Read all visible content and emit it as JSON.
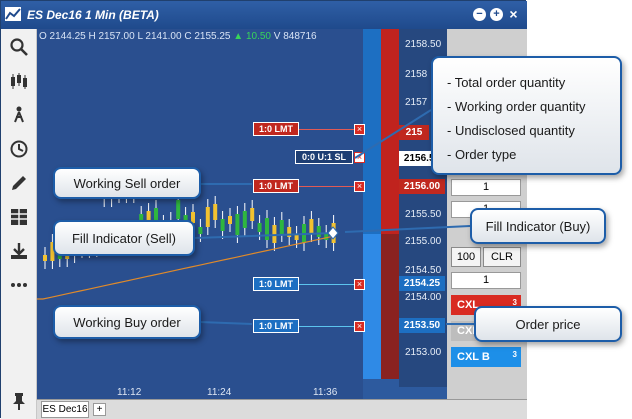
{
  "window": {
    "title": "ES Dec16 1 Min (BETA)",
    "buttons": [
      "−",
      "+",
      "×"
    ]
  },
  "toolbar": {
    "icons": [
      "search-icon",
      "candlestick-icon",
      "study-icon",
      "clock-icon",
      "pencil-icon",
      "grid-icon",
      "download-icon",
      "more-icon",
      "pin-icon"
    ]
  },
  "ohlc": {
    "open": "O 2144.25",
    "high": "H 2157.00",
    "low": "L 2141.00",
    "close": "C 2155.25",
    "change": "▲ 10.50",
    "volume": "V 848716"
  },
  "price_axis": {
    "labels": [
      "2158.50",
      "2158",
      "2157",
      "2156.00",
      "2155.50",
      "2155.00",
      "2154.50",
      "2154.00",
      "2153.00"
    ],
    "highlight_sell": "2156.00",
    "highlight_blue_1": "2154.25",
    "highlight_blue_2": "2153.50",
    "highlight_white": "2156.50",
    "highlight_red_partial": "215"
  },
  "time_axis": [
    "11:12",
    "11:24",
    "11:36"
  ],
  "orders": [
    {
      "label": "1:0 LMT",
      "side": "sell"
    },
    {
      "label": "0:0 U:1 SL",
      "side": "stop"
    },
    {
      "label": "1:0 LMT",
      "side": "sell"
    },
    {
      "label": "1:0 LMT",
      "side": "buy"
    },
    {
      "label": "1:0 LMT",
      "side": "buy"
    }
  ],
  "right_panel": {
    "qty_top": "1",
    "qty_mid": "1",
    "btn_100": "100",
    "btn_clr": "CLR",
    "qty_bottom": "1",
    "cxl_s": "CXL",
    "cxl_all": "CXL",
    "cxl_b": "CXL B",
    "cxl_b_count": "3",
    "cxl_s_count": "3"
  },
  "bottom": {
    "tab_label": "ES Dec16",
    "add_tab": "+"
  },
  "callouts": {
    "working_sell": "Working Sell order",
    "fill_sell": "Fill Indicator (Sell)",
    "working_buy": "Working Buy order",
    "fill_buy": "Fill Indicator (Buy)",
    "order_price": "Order price",
    "info_items": [
      "- Total order quantity",
      "- Working order quantity",
      "- Undisclosed quantity",
      "- Order type"
    ]
  },
  "colors": {
    "chart_bg": "#2a4f8f",
    "sell": "#c0281f",
    "buy": "#1d6fc2",
    "up_candle": "#2fb63f",
    "down_candle": "#f2c230"
  }
}
